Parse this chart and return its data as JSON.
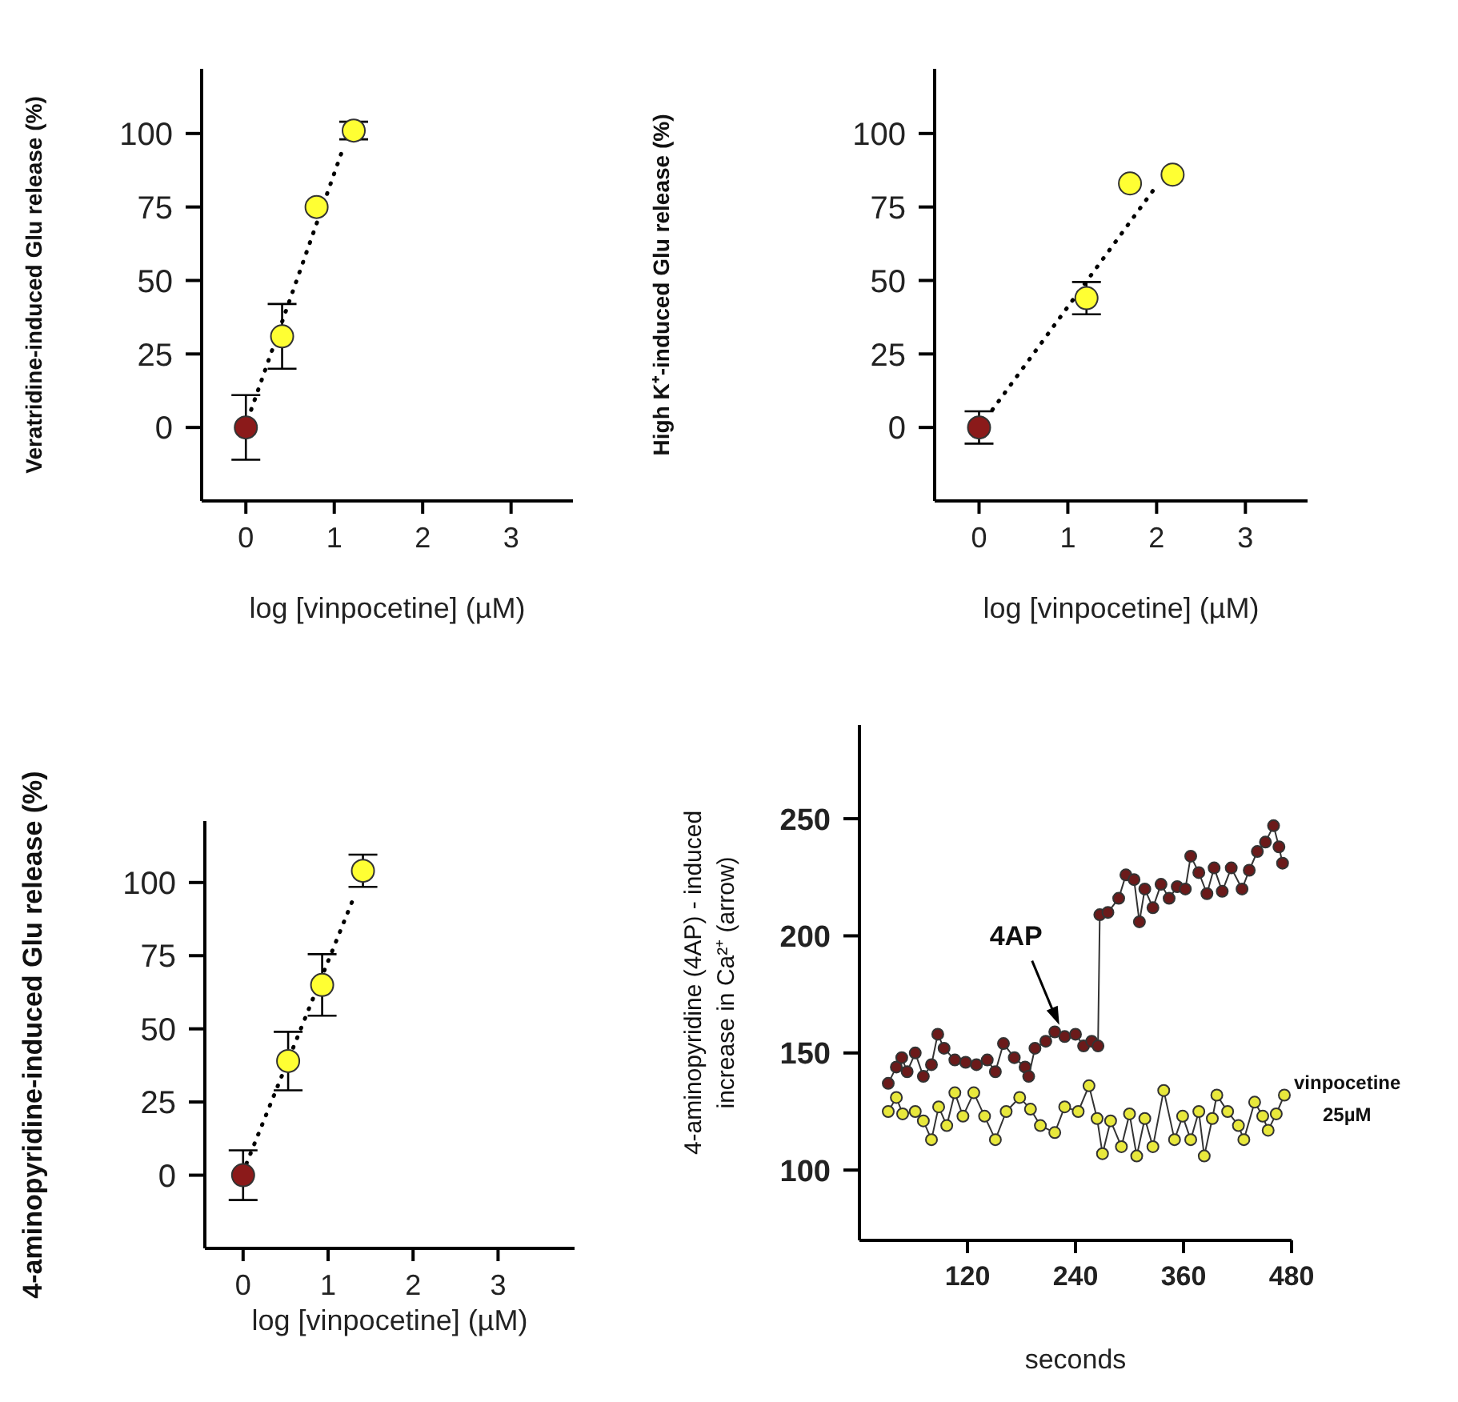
{
  "chart_data": [
    {
      "type": "scatter",
      "xlabel": "log [vinpocetine] (µM)",
      "ylabel": "Veratridine-induced Glu release (%)",
      "xlim": [
        -0.5,
        3.7
      ],
      "xticks": [
        0,
        1,
        2,
        3
      ],
      "ylim": [
        -25,
        122
      ],
      "yticks": [
        0,
        25,
        50,
        75,
        100
      ],
      "grid": false,
      "legend": false,
      "marker": "circle",
      "series": [
        {
          "type": "scatter",
          "colors": [
            "#8b1a1a",
            "#ffff33",
            "#ffff33",
            "#ffff33"
          ],
          "x": [
            0,
            0.41,
            0.8,
            1.22
          ],
          "values": [
            0,
            31,
            75,
            101
          ],
          "errors": [
            11,
            11,
            null,
            3
          ]
        },
        {
          "type": "line",
          "color": "#000000",
          "line_style": "dotted",
          "marker": "none",
          "x": [
            0.06,
            1.1
          ],
          "values": [
            6,
            95
          ]
        }
      ]
    },
    {
      "type": "scatter",
      "xlabel": "log [vinpocetine] (µM)",
      "ylabel": "High K⁺-induced Glu release (%)",
      "xlim": [
        -0.5,
        3.7
      ],
      "xticks": [
        0,
        1,
        2,
        3
      ],
      "ylim": [
        -25,
        122
      ],
      "yticks": [
        0,
        25,
        50,
        75,
        100
      ],
      "grid": false,
      "legend": false,
      "marker": "circle",
      "series": [
        {
          "type": "scatter",
          "colors": [
            "#8b1a1a",
            "#ffff33",
            "#ffff33",
            "#ffff33"
          ],
          "x": [
            0,
            1.21,
            1.7,
            2.18
          ],
          "values": [
            0,
            44,
            83,
            86
          ],
          "errors": [
            5.5,
            5.5,
            null,
            null
          ]
        },
        {
          "type": "line",
          "color": "#000000",
          "line_style": "dotted",
          "marker": "none",
          "x": [
            0.15,
            1.97
          ],
          "values": [
            6,
            81
          ]
        }
      ]
    },
    {
      "type": "scatter",
      "xlabel": "log [vinpocetine] (µM)",
      "ylabel": "4-aminopyridine-induced Glu release (%)",
      "xlim": [
        -0.45,
        3.9
      ],
      "xticks": [
        0,
        1,
        2,
        3
      ],
      "ylim": [
        -25,
        121
      ],
      "yticks": [
        0,
        25,
        50,
        75,
        100
      ],
      "grid": false,
      "legend": false,
      "marker": "circle",
      "series": [
        {
          "type": "scatter",
          "colors": [
            "#8b1a1a",
            "#ffff33",
            "#ffff33",
            "#ffff33"
          ],
          "x": [
            0,
            0.53,
            0.93,
            1.41
          ],
          "values": [
            0,
            39,
            65,
            104
          ],
          "errors": [
            8.5,
            10,
            10.5,
            5.5
          ]
        },
        {
          "type": "line",
          "color": "#000000",
          "line_style": "dotted",
          "marker": "none",
          "x": [
            0.04,
            1.29
          ],
          "values": [
            4,
            94
          ]
        }
      ]
    },
    {
      "type": "line",
      "xlabel": "seconds",
      "ylabel": "4-aminopyridine (4AP) - induced increase in Ca²⁺ (arrow)",
      "xlim": [
        0,
        480
      ],
      "xticks": [
        120,
        240,
        360,
        480
      ],
      "ylim": [
        70,
        290
      ],
      "yticks": [
        100,
        150,
        200,
        250
      ],
      "grid": false,
      "legend": false,
      "marker": "circle",
      "annotations": [
        {
          "text": "4AP",
          "x": 222,
          "y": 162
        }
      ],
      "series": [
        {
          "color": "#6b1a1a",
          "x": [
            32,
            41,
            47,
            53,
            62,
            71,
            80,
            87,
            94,
            106,
            118,
            130,
            142,
            151,
            160,
            172,
            184,
            188,
            195,
            207,
            217,
            228,
            240,
            249,
            258,
            265,
            267,
            276,
            288,
            296,
            305,
            311,
            317,
            326,
            335,
            344,
            353,
            362,
            368,
            377,
            386,
            394,
            403,
            413,
            425,
            433,
            442,
            451,
            460,
            466,
            470
          ],
          "values": [
            137,
            144,
            148,
            142,
            150,
            140,
            145,
            158,
            152,
            147,
            146,
            145,
            147,
            142,
            154,
            148,
            144,
            140,
            152,
            155,
            159,
            157,
            158,
            153,
            155,
            153,
            209,
            210,
            216,
            226,
            224,
            206,
            220,
            212,
            222,
            216,
            221,
            220,
            234,
            227,
            218,
            229,
            219,
            229,
            220,
            228,
            236,
            240,
            247,
            238,
            231
          ]
        },
        {
          "name": "vinpocetine 25µM",
          "color": "#e8e83c",
          "x": [
            32,
            41,
            48,
            62,
            71,
            80,
            88,
            97,
            106,
            115,
            127,
            139,
            151,
            163,
            178,
            190,
            201,
            217,
            228,
            243,
            255,
            264,
            270,
            279,
            291,
            300,
            308,
            317,
            326,
            338,
            350,
            359,
            368,
            377,
            383,
            392,
            397,
            409,
            421,
            427,
            439,
            448,
            454,
            463,
            472
          ],
          "values": [
            125,
            131,
            124,
            125,
            121,
            113,
            127,
            119,
            133,
            123,
            133,
            123,
            113,
            125,
            131,
            126,
            119,
            116,
            127,
            125,
            136,
            122,
            107,
            121,
            110,
            124,
            106,
            122,
            110,
            134,
            113,
            123,
            113,
            125,
            106,
            122,
            132,
            125,
            119,
            113,
            129,
            123,
            117,
            124,
            132
          ]
        }
      ]
    }
  ]
}
